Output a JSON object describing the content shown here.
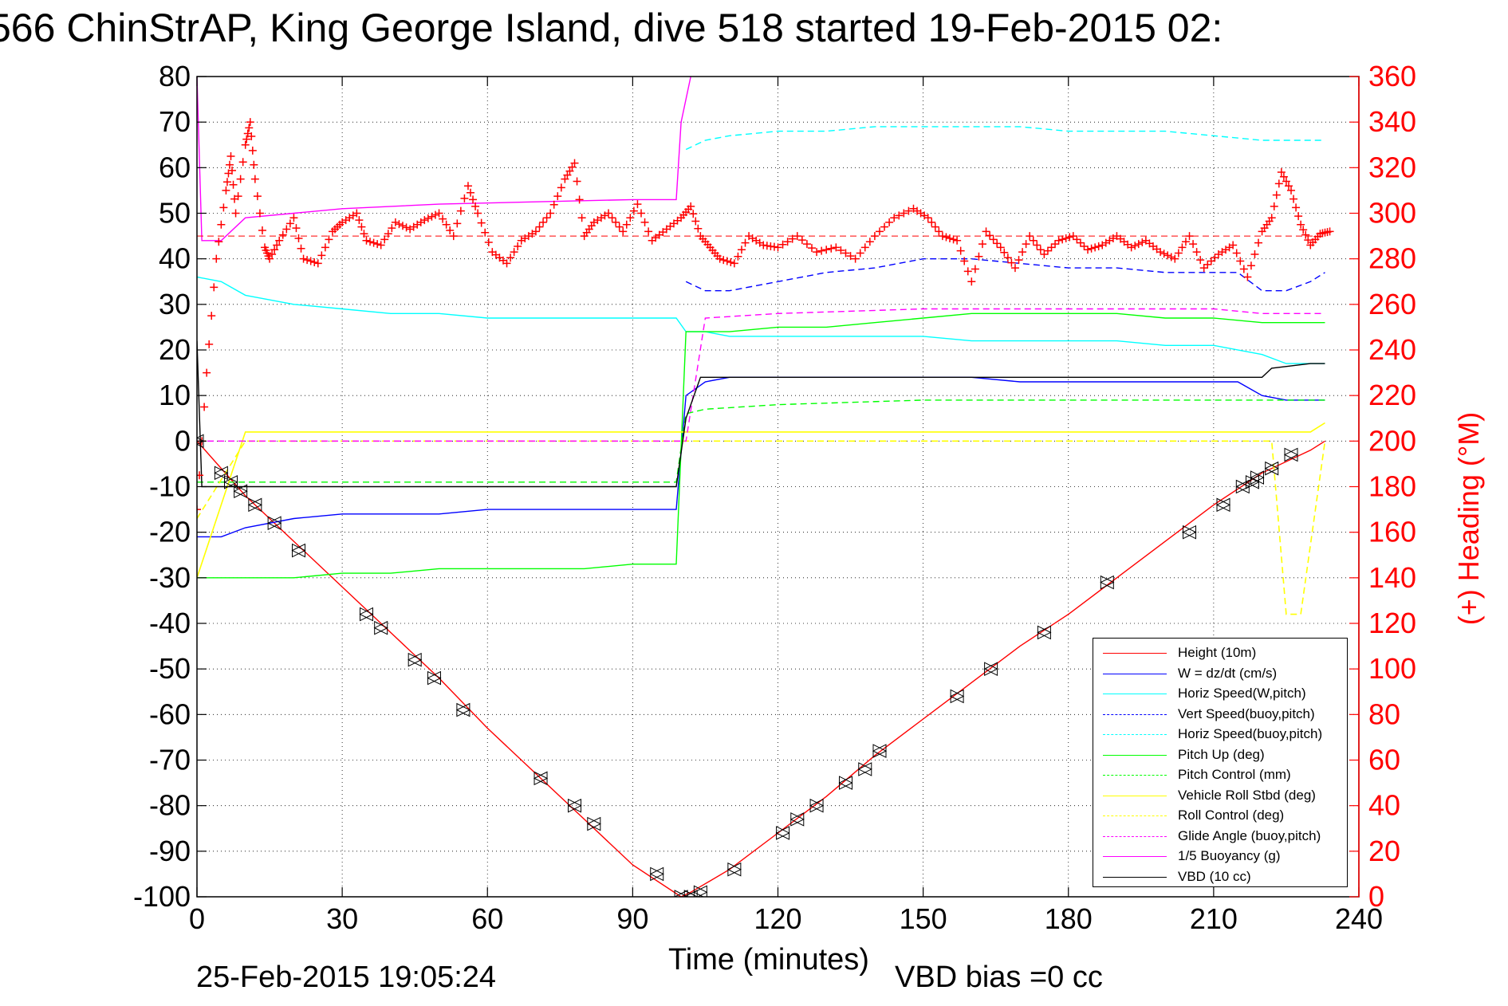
{
  "title": "566 ChinStrAP, King George Island, dive 518 started 19-Feb-2015 02:",
  "footer": {
    "timestamp": "25-Feb-2015 19:05:24",
    "vbd_bias": "VBD bias =0 cc"
  },
  "chart_data": {
    "type": "line",
    "title": "566 ChinStrAP, King George Island, dive 518 started 19-Feb-2015 02:",
    "xlabel": "Time (minutes)",
    "ylabel": "",
    "y2label": "(+) Heading (°M)",
    "xlim": [
      0,
      240
    ],
    "ylim": [
      -100,
      80
    ],
    "y2lim": [
      0,
      360
    ],
    "x_ticks": [
      "0",
      "30",
      "60",
      "90",
      "120",
      "150",
      "180",
      "210",
      "240"
    ],
    "y_ticks": [
      "80",
      "70",
      "60",
      "50",
      "40",
      "30",
      "20",
      "10",
      "0",
      "-10",
      "-20",
      "-30",
      "-40",
      "-50",
      "-60",
      "-70",
      "-80",
      "-90",
      "-100"
    ],
    "y2_ticks": [
      "360",
      "340",
      "320",
      "300",
      "280",
      "260",
      "240",
      "220",
      "200",
      "180",
      "160",
      "140",
      "120",
      "100",
      "80",
      "60",
      "40",
      "20",
      "0"
    ],
    "grid": true,
    "legend_position": "bottom-right",
    "legend": [
      {
        "label": "Height (10m)",
        "color": "#ff0000",
        "style": "solid"
      },
      {
        "label": "W = dz/dt (cm/s)",
        "color": "#0000ff",
        "style": "solid"
      },
      {
        "label": "Horiz Speed(W,pitch)",
        "color": "#00ffff",
        "style": "solid"
      },
      {
        "label": "Vert Speed(buoy,pitch)",
        "color": "#0000ff",
        "style": "dashed"
      },
      {
        "label": "Horiz Speed(buoy,pitch)",
        "color": "#00ffff",
        "style": "dashed"
      },
      {
        "label": "Pitch Up (deg)",
        "color": "#00ff00",
        "style": "solid"
      },
      {
        "label": "Pitch Control (mm)",
        "color": "#00ff00",
        "style": "dashed"
      },
      {
        "label": "Vehicle Roll Stbd (deg)",
        "color": "#ffff00",
        "style": "solid"
      },
      {
        "label": "Roll Control (deg)",
        "color": "#ffff00",
        "style": "dashed"
      },
      {
        "label": "Glide Angle (buoy,pitch)",
        "color": "#ff00ff",
        "style": "dashed"
      },
      {
        "label": "1/5 Buoyancy (g)",
        "color": "#ff00ff",
        "style": "solid"
      },
      {
        "label": "VBD (10 cc)",
        "color": "#000000",
        "style": "solid"
      }
    ],
    "series": [
      {
        "name": "Height (10m)",
        "color": "#ff0000",
        "style": "solid",
        "axis": "left",
        "x": [
          0,
          10,
          20,
          30,
          40,
          50,
          60,
          70,
          80,
          90,
          100,
          102,
          110,
          120,
          130,
          140,
          150,
          160,
          170,
          180,
          190,
          200,
          210,
          220,
          230,
          233
        ],
        "y": [
          0,
          -12,
          -22,
          -32,
          -42,
          -52,
          -63,
          -73,
          -83,
          -93,
          -100,
          -99,
          -94,
          -86,
          -78,
          -69,
          -61,
          -53,
          -45,
          -38,
          -30,
          -22,
          -14,
          -7,
          -2,
          0
        ]
      },
      {
        "name": "W = dz/dt (cm/s)",
        "color": "#0000ff",
        "style": "solid",
        "axis": "left",
        "x": [
          0,
          5,
          10,
          20,
          30,
          40,
          50,
          60,
          70,
          80,
          90,
          99,
          101,
          105,
          110,
          120,
          130,
          140,
          150,
          160,
          170,
          180,
          190,
          200,
          210,
          215,
          220,
          225,
          230,
          233
        ],
        "y": [
          -21,
          -21,
          -19,
          -17,
          -16,
          -16,
          -16,
          -15,
          -15,
          -15,
          -15,
          -15,
          10,
          13,
          14,
          14,
          14,
          14,
          14,
          14,
          13,
          13,
          13,
          13,
          13,
          13,
          10,
          9,
          9,
          9
        ]
      },
      {
        "name": "Horiz Speed(W,pitch)",
        "color": "#00ffff",
        "style": "solid",
        "axis": "left",
        "x": [
          0,
          5,
          10,
          20,
          30,
          40,
          50,
          60,
          70,
          80,
          90,
          99,
          101,
          105,
          110,
          120,
          130,
          140,
          150,
          160,
          170,
          180,
          190,
          200,
          210,
          220,
          225,
          230,
          233
        ],
        "y": [
          36,
          35,
          32,
          30,
          29,
          28,
          28,
          27,
          27,
          27,
          27,
          27,
          24,
          24,
          23,
          23,
          23,
          23,
          23,
          22,
          22,
          22,
          22,
          21,
          21,
          19,
          17,
          17,
          17
        ]
      },
      {
        "name": "Vert Speed(buoy,pitch)",
        "color": "#0000ff",
        "style": "dashed",
        "axis": "left",
        "x": [
          101,
          105,
          110,
          120,
          130,
          140,
          150,
          160,
          170,
          180,
          190,
          200,
          210,
          215,
          220,
          225,
          230,
          233
        ],
        "y": [
          35,
          33,
          33,
          35,
          37,
          38,
          40,
          40,
          39,
          38,
          38,
          37,
          37,
          37,
          33,
          33,
          35,
          37
        ]
      },
      {
        "name": "Horiz Speed(buoy,pitch)",
        "color": "#00ffff",
        "style": "dashed",
        "axis": "left",
        "x": [
          101,
          105,
          110,
          120,
          130,
          140,
          150,
          160,
          170,
          180,
          190,
          200,
          210,
          220,
          230,
          233
        ],
        "y": [
          64,
          66,
          67,
          68,
          68,
          69,
          69,
          69,
          69,
          68,
          68,
          68,
          67,
          66,
          66,
          66
        ]
      },
      {
        "name": "Pitch Up (deg)",
        "color": "#00ff00",
        "style": "solid",
        "axis": "left",
        "x": [
          0,
          5,
          10,
          20,
          30,
          40,
          50,
          60,
          70,
          80,
          90,
          99,
          101,
          105,
          110,
          120,
          130,
          140,
          150,
          160,
          170,
          180,
          190,
          200,
          210,
          220,
          230,
          233
        ],
        "y": [
          -30,
          -30,
          -30,
          -30,
          -29,
          -29,
          -28,
          -28,
          -28,
          -28,
          -27,
          -27,
          24,
          24,
          24,
          25,
          25,
          26,
          27,
          28,
          28,
          28,
          28,
          27,
          27,
          26,
          26,
          26
        ]
      },
      {
        "name": "Pitch Control (mm)",
        "color": "#00ff00",
        "style": "dashed",
        "axis": "left",
        "x": [
          0,
          10,
          30,
          60,
          90,
          99,
          101,
          105,
          120,
          150,
          180,
          210,
          233
        ],
        "y": [
          -9,
          -9,
          -9,
          -9,
          -9,
          -9,
          6,
          7,
          8,
          9,
          9,
          9,
          9
        ]
      },
      {
        "name": "Vehicle Roll Stbd (deg)",
        "color": "#ffff00",
        "style": "solid",
        "axis": "left",
        "x": [
          0,
          10,
          30,
          60,
          90,
          99,
          101,
          105,
          120,
          150,
          180,
          210,
          230,
          233
        ],
        "y": [
          -30,
          2,
          2,
          2,
          2,
          2,
          2,
          2,
          2,
          2,
          2,
          2,
          2,
          4
        ]
      },
      {
        "name": "Roll Control (deg)",
        "color": "#ffff00",
        "style": "dashed",
        "axis": "left",
        "x": [
          0,
          10,
          30,
          60,
          90,
          99,
          101,
          105,
          120,
          150,
          180,
          210,
          222,
          225,
          228,
          233
        ],
        "y": [
          -17,
          0,
          0,
          0,
          0,
          0,
          0,
          0,
          0,
          0,
          0,
          0,
          0,
          -38,
          -38,
          0
        ]
      },
      {
        "name": "Glide Angle (buoy,pitch)",
        "color": "#ff00ff",
        "style": "dashed",
        "axis": "left",
        "x": [
          0,
          10,
          30,
          60,
          90,
          99,
          101,
          105,
          120,
          150,
          180,
          210,
          220,
          230,
          233
        ],
        "y": [
          0,
          0,
          0,
          0,
          0,
          0,
          0,
          27,
          28,
          29,
          29,
          29,
          28,
          28,
          28
        ]
      },
      {
        "name": "1/5 Buoyancy (g)",
        "color": "#ff00ff",
        "style": "solid",
        "axis": "left",
        "x": [
          0,
          1,
          5,
          10,
          20,
          30,
          50,
          70,
          90,
          99,
          100,
          102
        ],
        "y": [
          80,
          44,
          44,
          49,
          50,
          51,
          52,
          52.5,
          53,
          53,
          70,
          80
        ]
      },
      {
        "name": "VBD (10 cc)",
        "color": "#000000",
        "style": "solid",
        "axis": "left",
        "x": [
          0,
          1,
          5,
          10,
          30,
          60,
          90,
          99,
          101,
          104,
          110,
          120,
          150,
          180,
          210,
          220,
          222,
          230,
          233
        ],
        "y": [
          22,
          -10,
          -10,
          -10,
          -10,
          -10,
          -10,
          -10,
          5,
          14,
          14,
          14,
          14,
          14,
          14,
          14,
          16,
          17,
          17
        ]
      },
      {
        "name": "(+) Heading (°M)",
        "color": "#ff0000",
        "style": "plus-markers",
        "axis": "right",
        "x": [
          0,
          2,
          4,
          6,
          7,
          8,
          10,
          11,
          12,
          14,
          15,
          17,
          20,
          22,
          25,
          28,
          30,
          33,
          35,
          38,
          41,
          44,
          47,
          50,
          53,
          56,
          58,
          61,
          64,
          67,
          70,
          73,
          76,
          78,
          80,
          82,
          85,
          88,
          91,
          94,
          97,
          100,
          102,
          104,
          106,
          108,
          111,
          114,
          117,
          120,
          124,
          128,
          132,
          136,
          140,
          144,
          148,
          151,
          154,
          157,
          160,
          163,
          166,
          169,
          172,
          175,
          178,
          181,
          184,
          187,
          190,
          193,
          196,
          199,
          202,
          205,
          208,
          211,
          214,
          217,
          220,
          222,
          224,
          226,
          228,
          230,
          232,
          234
        ],
        "y": [
          170,
          230,
          280,
          310,
          325,
          300,
          330,
          340,
          315,
          285,
          280,
          288,
          298,
          280,
          278,
          292,
          296,
          300,
          288,
          286,
          296,
          293,
          297,
          300,
          290,
          312,
          300,
          283,
          278,
          288,
          292,
          300,
          315,
          322,
          290,
          296,
          300,
          292,
          304,
          288,
          293,
          298,
          303,
          290,
          285,
          280,
          278,
          290,
          286,
          285,
          290,
          283,
          285,
          280,
          290,
          298,
          302,
          298,
          290,
          288,
          270,
          292,
          285,
          276,
          290,
          282,
          288,
          290,
          284,
          286,
          290,
          285,
          288,
          283,
          280,
          290,
          276,
          282,
          286,
          272,
          292,
          298,
          318,
          310,
          295,
          286,
          291,
          292
        ]
      }
    ],
    "dive_markers": {
      "type": "triangle-markers",
      "color": "#000000",
      "x": [
        0,
        5,
        7,
        9,
        12,
        16,
        21,
        35,
        38,
        45,
        49,
        55,
        71,
        78,
        82,
        95,
        100,
        102,
        104,
        111,
        121,
        124,
        128,
        134,
        138,
        141,
        157,
        164,
        175,
        188,
        205,
        212,
        216,
        218,
        219,
        222,
        226
      ],
      "y": [
        0,
        -7,
        -9,
        -11,
        -14,
        -18,
        -24,
        -38,
        -41,
        -48,
        -52,
        -59,
        -74,
        -80,
        -84,
        -95,
        -100,
        -100,
        -99,
        -94,
        -86,
        -83,
        -80,
        -75,
        -72,
        -68,
        -56,
        -50,
        -42,
        -31,
        -20,
        -14,
        -10,
        -9,
        -8,
        -6,
        -3
      ]
    }
  }
}
